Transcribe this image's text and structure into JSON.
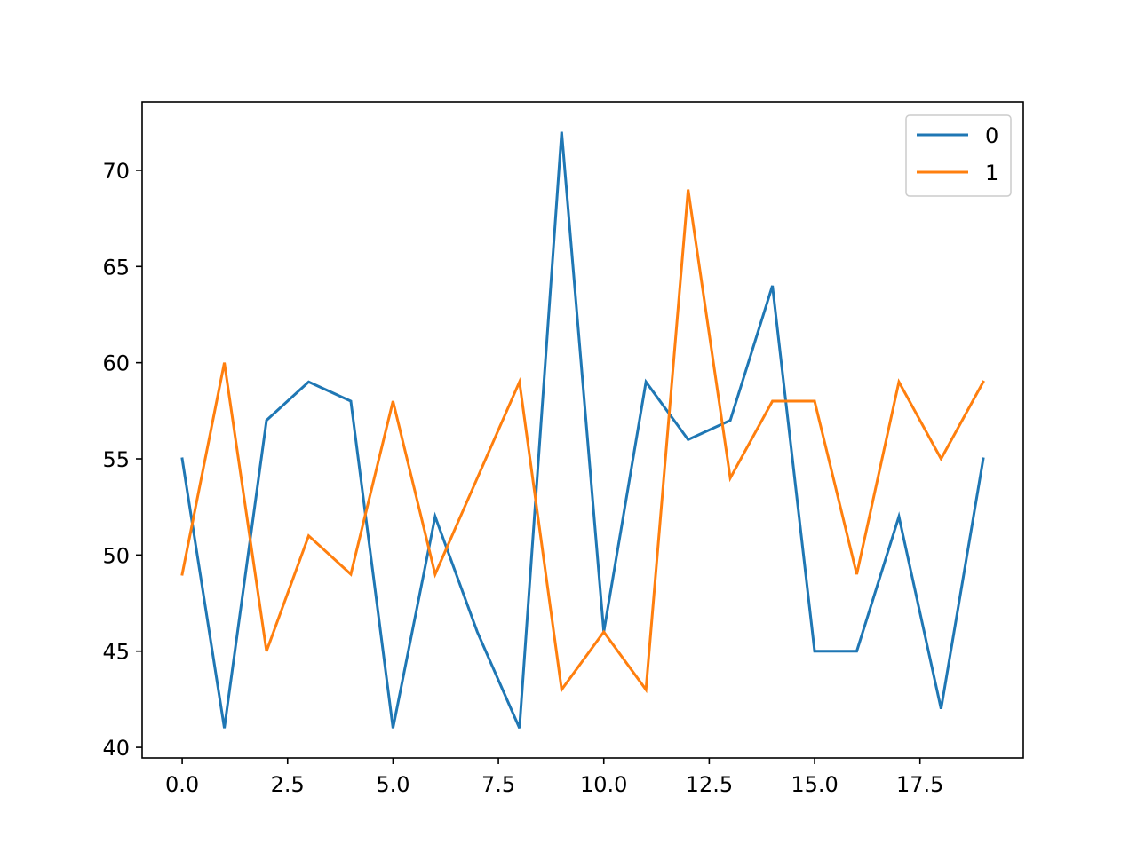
{
  "chart_data": {
    "type": "line",
    "title": "",
    "xlabel": "",
    "ylabel": "",
    "x": [
      0,
      1,
      2,
      3,
      4,
      5,
      6,
      7,
      8,
      9,
      10,
      11,
      12,
      13,
      14,
      15,
      16,
      17,
      18,
      19
    ],
    "series": [
      {
        "name": "0",
        "color": "#1f77b4",
        "values": [
          55,
          41,
          57,
          59,
          58,
          41,
          52,
          46,
          41,
          72,
          46,
          59,
          56,
          57,
          64,
          45,
          45,
          52,
          42,
          55
        ]
      },
      {
        "name": "1",
        "color": "#ff7f0e",
        "values": [
          49,
          60,
          45,
          51,
          49,
          58,
          49,
          54,
          59,
          43,
          46,
          43,
          69,
          54,
          58,
          58,
          49,
          59,
          55,
          59
        ]
      }
    ],
    "xlim": [
      -0.95,
      19.95
    ],
    "ylim": [
      39.45,
      73.55
    ],
    "xticks": [
      "0.0",
      "2.5",
      "5.0",
      "7.5",
      "10.0",
      "12.5",
      "15.0",
      "17.5"
    ],
    "xtick_values": [
      0,
      2.5,
      5,
      7.5,
      10,
      12.5,
      15,
      17.5
    ],
    "yticks": [
      "40",
      "45",
      "50",
      "55",
      "60",
      "65",
      "70"
    ],
    "ytick_values": [
      40,
      45,
      50,
      55,
      60,
      65,
      70
    ],
    "grid": false,
    "legend_position": "top-right"
  }
}
